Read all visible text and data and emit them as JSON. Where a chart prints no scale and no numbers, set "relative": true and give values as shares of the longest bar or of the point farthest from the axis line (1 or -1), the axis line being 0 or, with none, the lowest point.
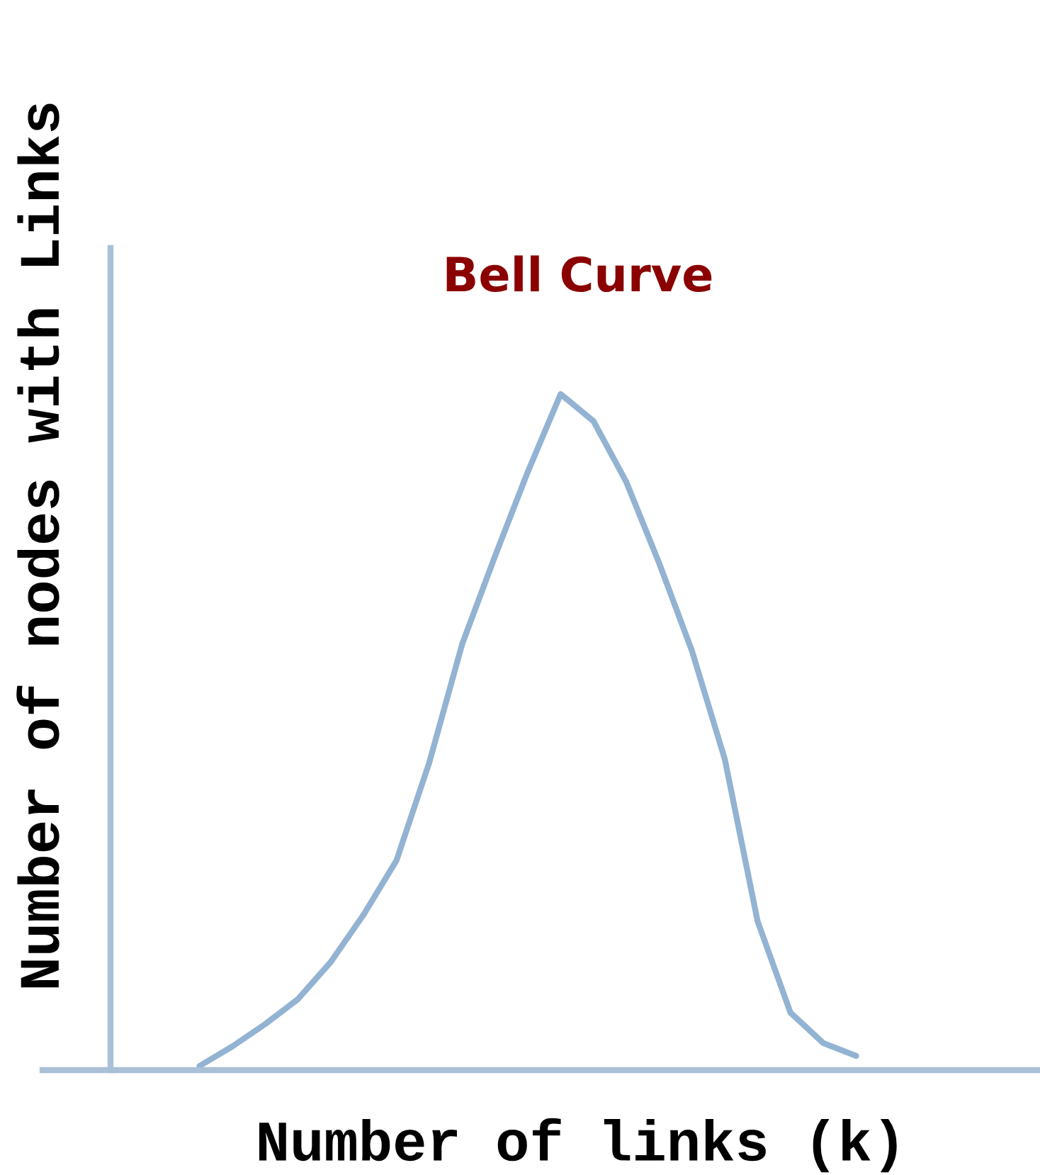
{
  "chart_data": {
    "type": "line",
    "title": "Bell Curve",
    "xlabel": "Number of links (k)",
    "ylabel": "Number of nodes with Links",
    "relative": true,
    "categories": [
      null,
      null,
      null,
      null,
      null,
      null,
      null,
      null,
      null,
      null,
      null,
      null,
      null,
      null,
      null,
      null,
      null,
      null,
      null,
      null,
      null
    ],
    "series": [
      {
        "color": "#93b3d3",
        "values": [
          0.006,
          0.035,
          0.068,
          0.105,
          0.16,
          0.23,
          0.31,
          0.455,
          0.63,
          0.76,
          0.885,
          1.0,
          0.96,
          0.87,
          0.75,
          0.62,
          0.46,
          0.22,
          0.085,
          0.04,
          0.021
        ]
      }
    ],
    "grid": false,
    "legend": false,
    "marker": "none",
    "line_style": "solid"
  }
}
